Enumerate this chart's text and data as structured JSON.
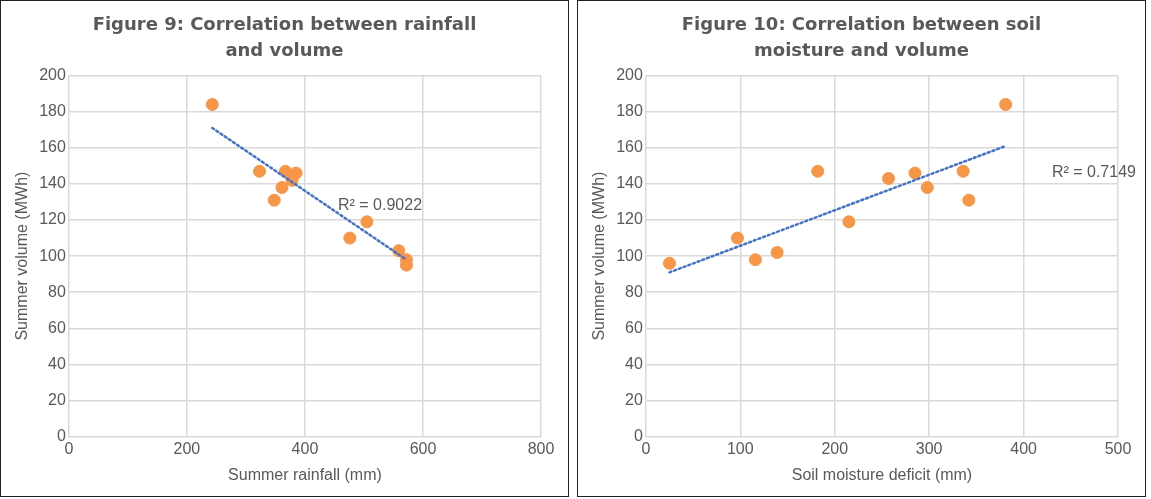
{
  "chart_data": [
    {
      "type": "scatter",
      "title": "Figure 9:  Correlation between rainfall and volume",
      "xlabel": "Summer rainfall (mm)",
      "ylabel": "Summer volume (MWh)",
      "xlim": [
        0,
        800
      ],
      "xticks": [
        0,
        200,
        400,
        600,
        800
      ],
      "ylim": [
        0,
        200
      ],
      "yticks": [
        0,
        20,
        40,
        60,
        80,
        100,
        120,
        140,
        160,
        180,
        200
      ],
      "grid": true,
      "legend": false,
      "series": [
        {
          "marker": "circle",
          "color": "#f79646",
          "x": [
            243,
            323,
            367,
            348,
            361,
            385,
            378,
            505,
            476,
            559,
            572,
            572
          ],
          "values": [
            184,
            147,
            147,
            131,
            138,
            146,
            142,
            119,
            110,
            103,
            98,
            95
          ]
        },
        {
          "type": "line",
          "marker": "none",
          "color": "#4472c4",
          "line_style": "dotted",
          "x": [
            243,
            572
          ],
          "values": [
            171,
            98
          ]
        }
      ],
      "annotations": [
        "R² = 0.9022"
      ]
    },
    {
      "type": "scatter",
      "title": "Figure 10:  Correlation between soil moisture and volume",
      "xlabel": "Soil moisture deficit (mm)",
      "ylabel": "Summer volume (MWh)",
      "xlim": [
        0,
        500
      ],
      "xticks": [
        0,
        100,
        200,
        300,
        400,
        500
      ],
      "ylim": [
        0,
        200
      ],
      "yticks": [
        0,
        20,
        40,
        60,
        80,
        100,
        120,
        140,
        160,
        180,
        200
      ],
      "grid": true,
      "legend": false,
      "series": [
        {
          "marker": "circle",
          "color": "#f79646",
          "x": [
            25,
            97,
            116,
            139,
            182,
            215,
            257,
            285,
            298,
            336,
            342,
            381
          ],
          "values": [
            96,
            110,
            98,
            102,
            147,
            119,
            143,
            146,
            138,
            147,
            131,
            184
          ]
        },
        {
          "type": "line",
          "marker": "none",
          "color": "#4472c4",
          "line_style": "dotted",
          "x": [
            25,
            381
          ],
          "values": [
            91,
            161
          ]
        }
      ],
      "annotations": [
        "R² = 0.7149"
      ]
    }
  ]
}
